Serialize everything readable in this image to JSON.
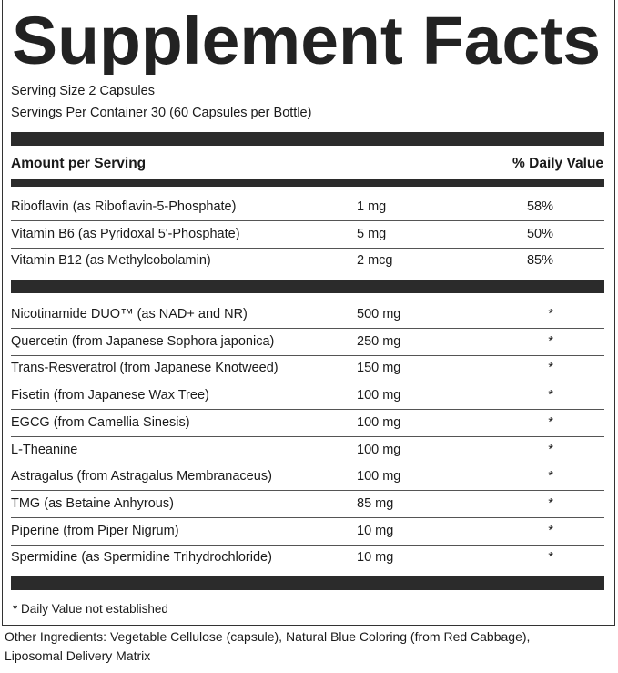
{
  "header": {
    "title": "Supplement Facts",
    "serving_size": "Serving Size 2 Capsules",
    "servings_per_container": "Servings Per Container 30 (60 Capsules per Bottle)"
  },
  "table": {
    "header": {
      "amount": "Amount per Serving",
      "daily_value": "% Daily Value"
    },
    "vitamins": [
      {
        "name": "Riboflavin  (as Riboflavin-5-Phosphate)",
        "amount": "1 mg",
        "daily_value": "58%"
      },
      {
        "name": "Vitamin B6 (as Pyridoxal 5'-Phosphate)",
        "amount": "5 mg",
        "daily_value": "50%"
      },
      {
        "name": "Vitamin B12  (as Methylcobolamin)",
        "amount": "2 mcg",
        "daily_value": "85%"
      }
    ],
    "other": [
      {
        "name": "Nicotinamide DUO™ (as NAD+ and NR)",
        "amount": "500 mg",
        "daily_value": "*"
      },
      {
        "name": "Quercetin (from Japanese Sophora japonica)",
        "amount": "250 mg",
        "daily_value": "*"
      },
      {
        "name": "Trans-Resveratrol (from Japanese Knotweed)",
        "amount": "150 mg",
        "daily_value": "*"
      },
      {
        "name": "Fisetin (from Japanese Wax Tree)",
        "amount": "100 mg",
        "daily_value": "*"
      },
      {
        "name": "EGCG (from Camellia Sinesis)",
        "amount": "100 mg",
        "daily_value": "*"
      },
      {
        "name": "L-Theanine",
        "amount": "100 mg",
        "daily_value": "*"
      },
      {
        "name": "Astragalus (from Astragalus Membranaceus)",
        "amount": "100 mg",
        "daily_value": "*"
      },
      {
        "name": "TMG (as Betaine Anhyrous)",
        "amount": "85 mg",
        "daily_value": "*"
      },
      {
        "name": "Piperine (from Piper Nigrum)",
        "amount": "10 mg",
        "daily_value": "*"
      },
      {
        "name": "Spermidine (as Spermidine Trihydrochloride)",
        "amount": "10 mg",
        "daily_value": "*"
      }
    ],
    "footnote": "* Daily Value not established"
  },
  "other_ingredients": [
    "Other Ingredients: Vegetable Cellulose (capsule), Natural Blue Coloring (from Red Cabbage),",
    "Liposomal Delivery Matrix"
  ]
}
